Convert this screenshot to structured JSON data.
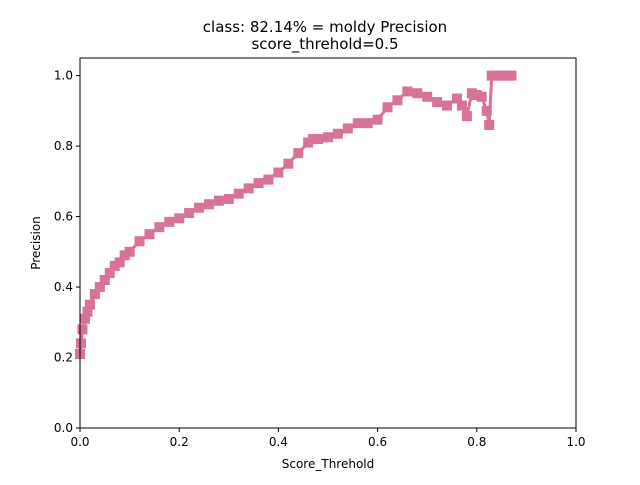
{
  "chart_data": {
    "type": "line",
    "title_lines": [
      "class: 82.14% = moldy Precision",
      "score_threhold=0.5"
    ],
    "xlabel": "Score_Threhold",
    "ylabel": "Precision",
    "xlim": [
      0.0,
      1.0
    ],
    "ylim": [
      0.0,
      1.05
    ],
    "xticks": [
      0.0,
      0.2,
      0.4,
      0.6,
      0.8,
      1.0
    ],
    "xtick_labels": [
      "0.0",
      "0.2",
      "0.4",
      "0.6",
      "0.8",
      "1.0"
    ],
    "yticks": [
      0.0,
      0.2,
      0.4,
      0.6,
      0.8,
      1.0
    ],
    "ytick_labels": [
      "0.0",
      "0.2",
      "0.4",
      "0.6",
      "0.8",
      "1.0"
    ],
    "grid": false,
    "series": [
      {
        "name": "Precision",
        "color": "#d87299",
        "marker": "square",
        "x": [
          0.0,
          0.002,
          0.005,
          0.01,
          0.015,
          0.02,
          0.03,
          0.04,
          0.05,
          0.06,
          0.07,
          0.08,
          0.09,
          0.1,
          0.12,
          0.14,
          0.16,
          0.18,
          0.2,
          0.22,
          0.24,
          0.26,
          0.28,
          0.3,
          0.32,
          0.34,
          0.36,
          0.38,
          0.4,
          0.42,
          0.44,
          0.46,
          0.47,
          0.48,
          0.5,
          0.52,
          0.54,
          0.56,
          0.58,
          0.6,
          0.62,
          0.64,
          0.66,
          0.68,
          0.7,
          0.72,
          0.74,
          0.76,
          0.77,
          0.78,
          0.79,
          0.8,
          0.81,
          0.82,
          0.825,
          0.83,
          0.84,
          0.85,
          0.86,
          0.87
        ],
        "y": [
          0.21,
          0.24,
          0.28,
          0.31,
          0.33,
          0.35,
          0.38,
          0.4,
          0.42,
          0.44,
          0.46,
          0.47,
          0.49,
          0.5,
          0.53,
          0.55,
          0.57,
          0.585,
          0.595,
          0.61,
          0.625,
          0.635,
          0.645,
          0.65,
          0.665,
          0.68,
          0.695,
          0.705,
          0.725,
          0.75,
          0.78,
          0.81,
          0.82,
          0.82,
          0.825,
          0.835,
          0.85,
          0.865,
          0.865,
          0.875,
          0.91,
          0.93,
          0.955,
          0.95,
          0.94,
          0.925,
          0.915,
          0.935,
          0.915,
          0.885,
          0.95,
          0.945,
          0.94,
          0.9,
          0.86,
          1.0,
          1.0,
          1.0,
          1.0,
          1.0
        ]
      }
    ]
  }
}
